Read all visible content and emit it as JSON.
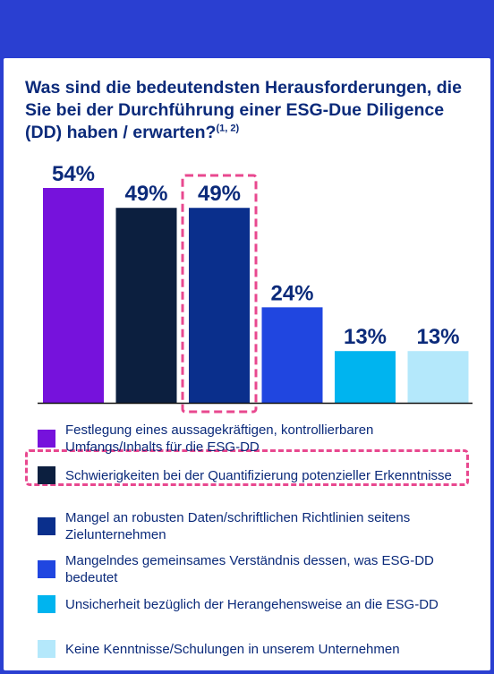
{
  "title_text": "Was sind die bedeutendsten Herausforderungen, die Sie bei der Durchführung einer ESG-Due Diligence (DD) haben / erwarten?",
  "title_superscript": "(1, 2)",
  "chart_data": {
    "type": "bar",
    "categories": [
      "Festlegung eines aussagekräftigen, kontrollierbaren Umfangs/Inhalts für die ESG-DD",
      "Schwierigkeiten bei der Quantifizierung potenzieller Erkenntnisse",
      "Mangel an robusten Daten/schriftlichen Richtlinien seitens Zielunternehmen",
      "Mangelndes gemeinsames Verständnis dessen, was ESG-DD bedeutet",
      "Unsicherheit bezüglich der Herangehensweise an die ESG-DD",
      "Keine Kenntnisse/Schulungen in unserem Unternehmen"
    ],
    "values": [
      54,
      49,
      49,
      24,
      13,
      13
    ],
    "value_labels": [
      "54%",
      "49%",
      "49%",
      "24%",
      "13%",
      "13%"
    ],
    "colors": [
      "#7612dc",
      "#0c1f3f",
      "#0a2f8c",
      "#2046e0",
      "#00b4ef",
      "#b4e8fb"
    ],
    "highlighted_index": 2,
    "highlight_color": "#e8488f",
    "ylim": [
      0,
      54
    ],
    "grid": false,
    "legend_position": "bottom"
  },
  "colors": {
    "background": "#2a3fd1",
    "text": "#0b2a7a"
  }
}
